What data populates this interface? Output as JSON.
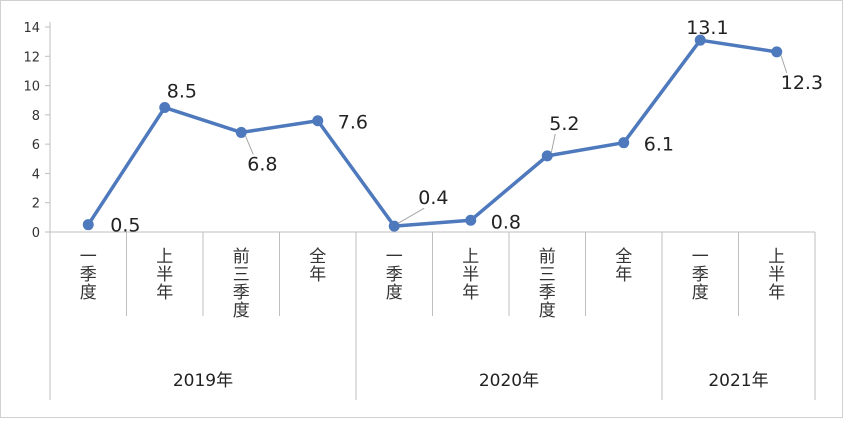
{
  "chart_data": {
    "type": "line",
    "title": "",
    "xlabel": "",
    "ylabel": "",
    "ylim": [
      0,
      14
    ],
    "yticks": [
      0,
      2,
      4,
      6,
      8,
      10,
      12,
      14
    ],
    "grid": false,
    "legend": "none",
    "groups": [
      {
        "label": "2019年",
        "categories": [
          "一季度",
          "上半年",
          "前三季度",
          "全年"
        ]
      },
      {
        "label": "2020年",
        "categories": [
          "一季度",
          "上半年",
          "前三季度",
          "全年"
        ]
      },
      {
        "label": "2021年",
        "categories": [
          "一季度",
          "上半年"
        ]
      }
    ],
    "categories": [
      "一季度",
      "上半年",
      "前三季度",
      "全年",
      "一季度",
      "上半年",
      "前三季度",
      "全年",
      "一季度",
      "上半年"
    ],
    "series": [
      {
        "values": [
          0.5,
          8.5,
          6.8,
          7.6,
          0.4,
          0.8,
          5.2,
          6.1,
          13.1,
          12.3
        ],
        "color": "#4e79bd"
      }
    ],
    "data_labels": [
      "0.5",
      "8.5",
      "6.8",
      "7.6",
      "0.4",
      "0.8",
      "5.2",
      "6.1",
      "13.1",
      "12.3"
    ]
  },
  "colors": {
    "line": "#4e79bd",
    "axis": "#bfbfbf",
    "frame": "#d0d0d0",
    "leader": "#a6a6a6"
  }
}
